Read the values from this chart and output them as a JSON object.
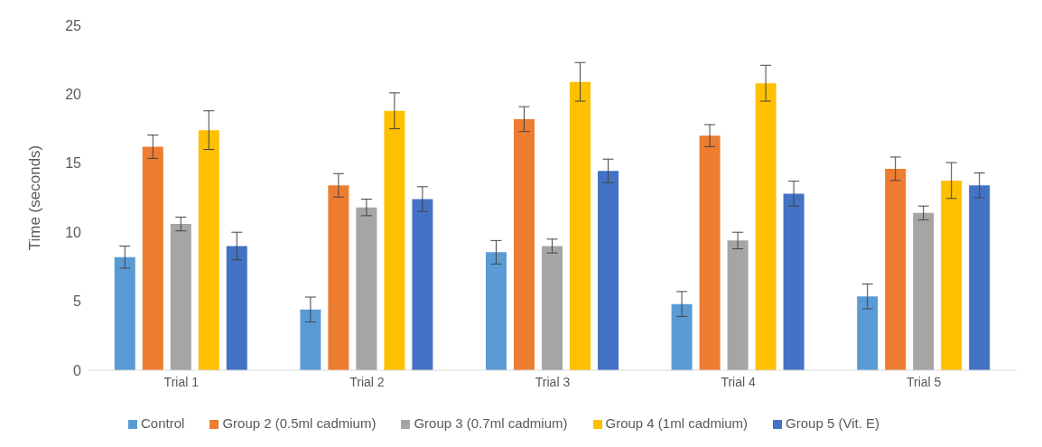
{
  "chart_data": {
    "type": "bar",
    "ylabel": "Time (seconds)",
    "categories": [
      "Trial 1",
      "Trial 2",
      "Trial 3",
      "Trial 4",
      "Trial 5"
    ],
    "series": [
      {
        "name": "Control",
        "color": "#5b9bd5",
        "values": [
          8.2,
          4.4,
          8.55,
          4.8,
          5.35
        ],
        "errors": [
          0.8,
          0.9,
          0.85,
          0.9,
          0.9
        ]
      },
      {
        "name": "Group 2 (0.5ml cadmium)",
        "color": "#ed7d31",
        "values": [
          16.2,
          13.4,
          18.2,
          17.0,
          14.6
        ],
        "errors": [
          0.85,
          0.85,
          0.9,
          0.8,
          0.85
        ]
      },
      {
        "name": "Group 3 (0.7ml cadmium)",
        "color": "#a5a5a5",
        "values": [
          10.6,
          11.8,
          9.0,
          9.4,
          11.4
        ],
        "errors": [
          0.5,
          0.6,
          0.5,
          0.6,
          0.5
        ]
      },
      {
        "name": "Group 4 (1ml cadmium)",
        "color": "#ffc000",
        "values": [
          17.4,
          18.8,
          20.9,
          20.8,
          13.75
        ],
        "errors": [
          1.4,
          1.3,
          1.4,
          1.3,
          1.3
        ]
      },
      {
        "name": "Group 5 (Vit. E)",
        "color": "#4472c4",
        "values": [
          9.0,
          12.4,
          14.45,
          12.8,
          13.4
        ],
        "errors": [
          1.0,
          0.9,
          0.85,
          0.9,
          0.9
        ]
      }
    ],
    "ylim": [
      0,
      25
    ],
    "yticks": [
      0,
      5,
      10,
      15,
      20,
      25
    ],
    "grid": false,
    "legend": "bottom"
  }
}
